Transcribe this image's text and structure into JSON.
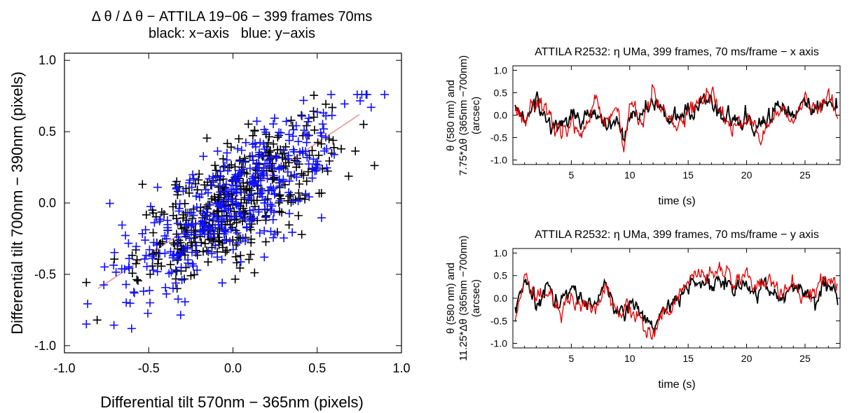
{
  "chart_data": [
    {
      "type": "scatter",
      "title": "Δ θ / Δ θ − ATTILA 19−06 − 399 frames 70ms",
      "subtitle": "black: x−axis   blue: y−axis",
      "xlabel": "Differential tilt 570nm − 365nm (pixels)",
      "ylabel": "Differential tilt 700nm − 390nm (pixels)",
      "xlim": [
        -1.0,
        1.0
      ],
      "ylim": [
        -1.05,
        1.05
      ],
      "xticks": [
        "-1.0",
        "-0.5",
        "0.0",
        "0.5",
        "1.0"
      ],
      "yticks": [
        "-1.0",
        "-0.5",
        "0.0",
        "0.5",
        "1.0"
      ],
      "grid": false,
      "fit_line": {
        "x": [
          -0.8,
          0.75
        ],
        "y": [
          -0.6,
          0.62
        ],
        "color": "#e89090"
      },
      "series": [
        {
          "color": "#000000",
          "marker": "+",
          "slope": 0.72,
          "spread": 0.19,
          "x_sd": 0.28,
          "n": 399
        },
        {
          "color": "#1010ff",
          "marker": "+",
          "slope": 0.79,
          "spread": 0.2,
          "x_sd": 0.33,
          "n": 399
        }
      ]
    },
    {
      "type": "line",
      "title": "ATTILA R2532: η UMa, 399 frames, 70 ms/frame − x axis",
      "xlabel": "time (s)",
      "ylabel_lines": [
        "θ (580 nm) and",
        "7.75*Δθ (365nm −700nm)",
        "(arcsec)"
      ],
      "xlim": [
        0,
        28
      ],
      "ylim": [
        -1.1,
        1.1
      ],
      "xticks": [
        5,
        10,
        15,
        20,
        25
      ],
      "yticks": [
        "1.0",
        "0.5",
        "0.0",
        "-0.5",
        "-1.0"
      ],
      "x_start": 0.2,
      "x_end": 27.8,
      "n_points": 399,
      "series": [
        {
          "color": "#000000",
          "anchors": [
            [
              0.2,
              0.1
            ],
            [
              1,
              -0.1
            ],
            [
              2,
              0.3
            ],
            [
              3,
              -0.1
            ],
            [
              4,
              -0.3
            ],
            [
              5,
              0.1
            ],
            [
              6,
              -0.2
            ],
            [
              7,
              0.15
            ],
            [
              8,
              -0.3
            ],
            [
              9,
              -0.1
            ],
            [
              9.5,
              -0.6
            ],
            [
              10,
              0.1
            ],
            [
              11,
              0.0
            ],
            [
              12,
              0.25
            ],
            [
              13,
              0.0
            ],
            [
              14,
              -0.1
            ],
            [
              15,
              0.1
            ],
            [
              16,
              0.2
            ],
            [
              17,
              0.3
            ],
            [
              18,
              0.0
            ],
            [
              19,
              -0.2
            ],
            [
              20,
              -0.1
            ],
            [
              21,
              -0.3
            ],
            [
              22,
              0.0
            ],
            [
              23,
              0.2
            ],
            [
              24,
              0.0
            ],
            [
              25,
              0.3
            ],
            [
              26,
              0.1
            ],
            [
              27,
              0.25
            ],
            [
              27.8,
              0.2
            ]
          ]
        },
        {
          "color": "#e00000",
          "anchors": [
            [
              0.2,
              0.2
            ],
            [
              1,
              -0.2
            ],
            [
              2,
              0.4
            ],
            [
              3,
              0.0
            ],
            [
              4,
              -0.4
            ],
            [
              5,
              -0.1
            ],
            [
              6,
              -0.5
            ],
            [
              7,
              0.3
            ],
            [
              8,
              -0.1
            ],
            [
              9,
              0.2
            ],
            [
              9.5,
              -0.8
            ],
            [
              10,
              0.3
            ],
            [
              11,
              -0.2
            ],
            [
              12,
              0.5
            ],
            [
              13,
              0.2
            ],
            [
              14,
              -0.2
            ],
            [
              15,
              0.0
            ],
            [
              16,
              0.3
            ],
            [
              17,
              0.4
            ],
            [
              18,
              -0.1
            ],
            [
              19,
              -0.3
            ],
            [
              20,
              0.0
            ],
            [
              21,
              -0.5
            ],
            [
              22,
              -0.1
            ],
            [
              23,
              0.2
            ],
            [
              24,
              -0.2
            ],
            [
              25,
              0.4
            ],
            [
              26,
              0.0
            ],
            [
              27,
              0.55
            ],
            [
              27.8,
              -0.1
            ]
          ]
        }
      ]
    },
    {
      "type": "line",
      "title": "ATTILA R2532: η UMa, 399 frames, 70 ms/frame − y axis",
      "xlabel": "time (s)",
      "ylabel_lines": [
        "θ (580 nm) and",
        "11.25*Δθ (365nm −700nm)",
        "(arcsec)"
      ],
      "xlim": [
        0,
        28
      ],
      "ylim": [
        -1.1,
        1.1
      ],
      "xticks": [
        5,
        10,
        15,
        20,
        25
      ],
      "yticks": [
        "1.0",
        "0.5",
        "0.0",
        "-0.5",
        "-1.0"
      ],
      "x_start": 0.2,
      "x_end": 27.8,
      "n_points": 399,
      "series": [
        {
          "color": "#000000",
          "anchors": [
            [
              0.2,
              -0.3
            ],
            [
              1,
              0.4
            ],
            [
              2,
              -0.1
            ],
            [
              3,
              0.3
            ],
            [
              4,
              -0.2
            ],
            [
              5,
              0.2
            ],
            [
              6,
              0.0
            ],
            [
              7,
              -0.2
            ],
            [
              8,
              0.3
            ],
            [
              9,
              -0.3
            ],
            [
              10,
              -0.2
            ],
            [
              11,
              -0.4
            ],
            [
              12,
              -0.6
            ],
            [
              12.5,
              -0.4
            ],
            [
              13,
              -0.2
            ],
            [
              14,
              0.0
            ],
            [
              15,
              0.2
            ],
            [
              16,
              0.4
            ],
            [
              17,
              0.3
            ],
            [
              18,
              0.5
            ],
            [
              19,
              0.2
            ],
            [
              20,
              0.4
            ],
            [
              21,
              0.1
            ],
            [
              22,
              0.3
            ],
            [
              23,
              0.0
            ],
            [
              24,
              0.2
            ],
            [
              25,
              0.1
            ],
            [
              26,
              0.0
            ],
            [
              27,
              0.3
            ],
            [
              27.8,
              0.0
            ]
          ]
        },
        {
          "color": "#e00000",
          "anchors": [
            [
              0.2,
              -0.4
            ],
            [
              1,
              0.5
            ],
            [
              2,
              0.0
            ],
            [
              3,
              0.2
            ],
            [
              4,
              -0.3
            ],
            [
              5,
              0.1
            ],
            [
              6,
              -0.1
            ],
            [
              7,
              -0.3
            ],
            [
              8,
              0.3
            ],
            [
              9,
              -0.4
            ],
            [
              10,
              -0.1
            ],
            [
              11,
              -0.5
            ],
            [
              12,
              -0.9
            ],
            [
              12.5,
              -0.5
            ],
            [
              13,
              -0.3
            ],
            [
              14,
              -0.1
            ],
            [
              15,
              0.4
            ],
            [
              16,
              0.6
            ],
            [
              17,
              0.5
            ],
            [
              18,
              0.7
            ],
            [
              19,
              0.3
            ],
            [
              20,
              0.5
            ],
            [
              21,
              0.2
            ],
            [
              22,
              0.4
            ],
            [
              23,
              0.1
            ],
            [
              24,
              0.3
            ],
            [
              25,
              0.0
            ],
            [
              26,
              0.2
            ],
            [
              27,
              0.5
            ],
            [
              27.8,
              0.1
            ]
          ]
        }
      ]
    }
  ]
}
